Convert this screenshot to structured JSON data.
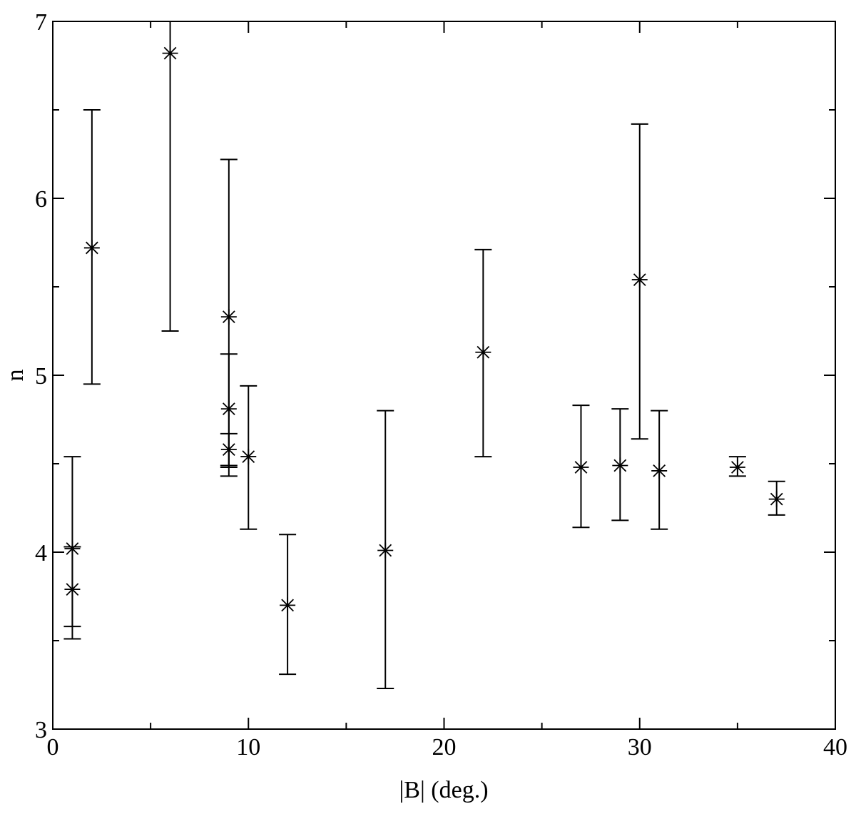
{
  "chart_data": {
    "type": "scatter",
    "xlabel": "|B| (deg.)",
    "ylabel": "n",
    "xlim": [
      0,
      40
    ],
    "ylim": [
      3,
      7
    ],
    "xticks_major": [
      0,
      10,
      20,
      30,
      40
    ],
    "xticks_minor": [
      5,
      15,
      25,
      35
    ],
    "yticks_major": [
      3,
      4,
      5,
      6,
      7
    ],
    "yticks_minor": [
      3.5,
      4.5,
      5.5,
      6.5
    ],
    "x_tick_labels": [
      "0",
      "10",
      "20",
      "30",
      "40"
    ],
    "y_tick_labels": [
      "3",
      "4",
      "5",
      "6",
      "7"
    ],
    "grid": false,
    "marker": "asterisk",
    "color": "#000000",
    "points": [
      {
        "x": 1,
        "y": 4.02,
        "ylow": 3.58,
        "yhigh": 4.54
      },
      {
        "x": 1,
        "y": 3.79,
        "ylow": 3.51,
        "yhigh": 4.03
      },
      {
        "x": 2,
        "y": 5.72,
        "ylow": 4.95,
        "yhigh": 6.5
      },
      {
        "x": 6,
        "y": 6.82,
        "ylow": 5.25,
        "yhigh": 7.0
      },
      {
        "x": 9,
        "y": 5.33,
        "ylow": 4.49,
        "yhigh": 6.22
      },
      {
        "x": 9,
        "y": 4.81,
        "ylow": 4.43,
        "yhigh": 5.12
      },
      {
        "x": 9,
        "y": 4.58,
        "ylow": 4.48,
        "yhigh": 4.67
      },
      {
        "x": 10,
        "y": 4.54,
        "ylow": 4.13,
        "yhigh": 4.94
      },
      {
        "x": 12,
        "y": 3.7,
        "ylow": 3.31,
        "yhigh": 4.1
      },
      {
        "x": 17,
        "y": 4.01,
        "ylow": 3.23,
        "yhigh": 4.8
      },
      {
        "x": 22,
        "y": 5.13,
        "ylow": 4.54,
        "yhigh": 5.71
      },
      {
        "x": 27,
        "y": 4.48,
        "ylow": 4.14,
        "yhigh": 4.83
      },
      {
        "x": 29,
        "y": 4.49,
        "ylow": 4.18,
        "yhigh": 4.81
      },
      {
        "x": 30,
        "y": 5.54,
        "ylow": 4.64,
        "yhigh": 6.42
      },
      {
        "x": 31,
        "y": 4.46,
        "ylow": 4.13,
        "yhigh": 4.8
      },
      {
        "x": 35,
        "y": 4.48,
        "ylow": 4.43,
        "yhigh": 4.54
      },
      {
        "x": 37,
        "y": 4.3,
        "ylow": 4.21,
        "yhigh": 4.4
      }
    ]
  }
}
